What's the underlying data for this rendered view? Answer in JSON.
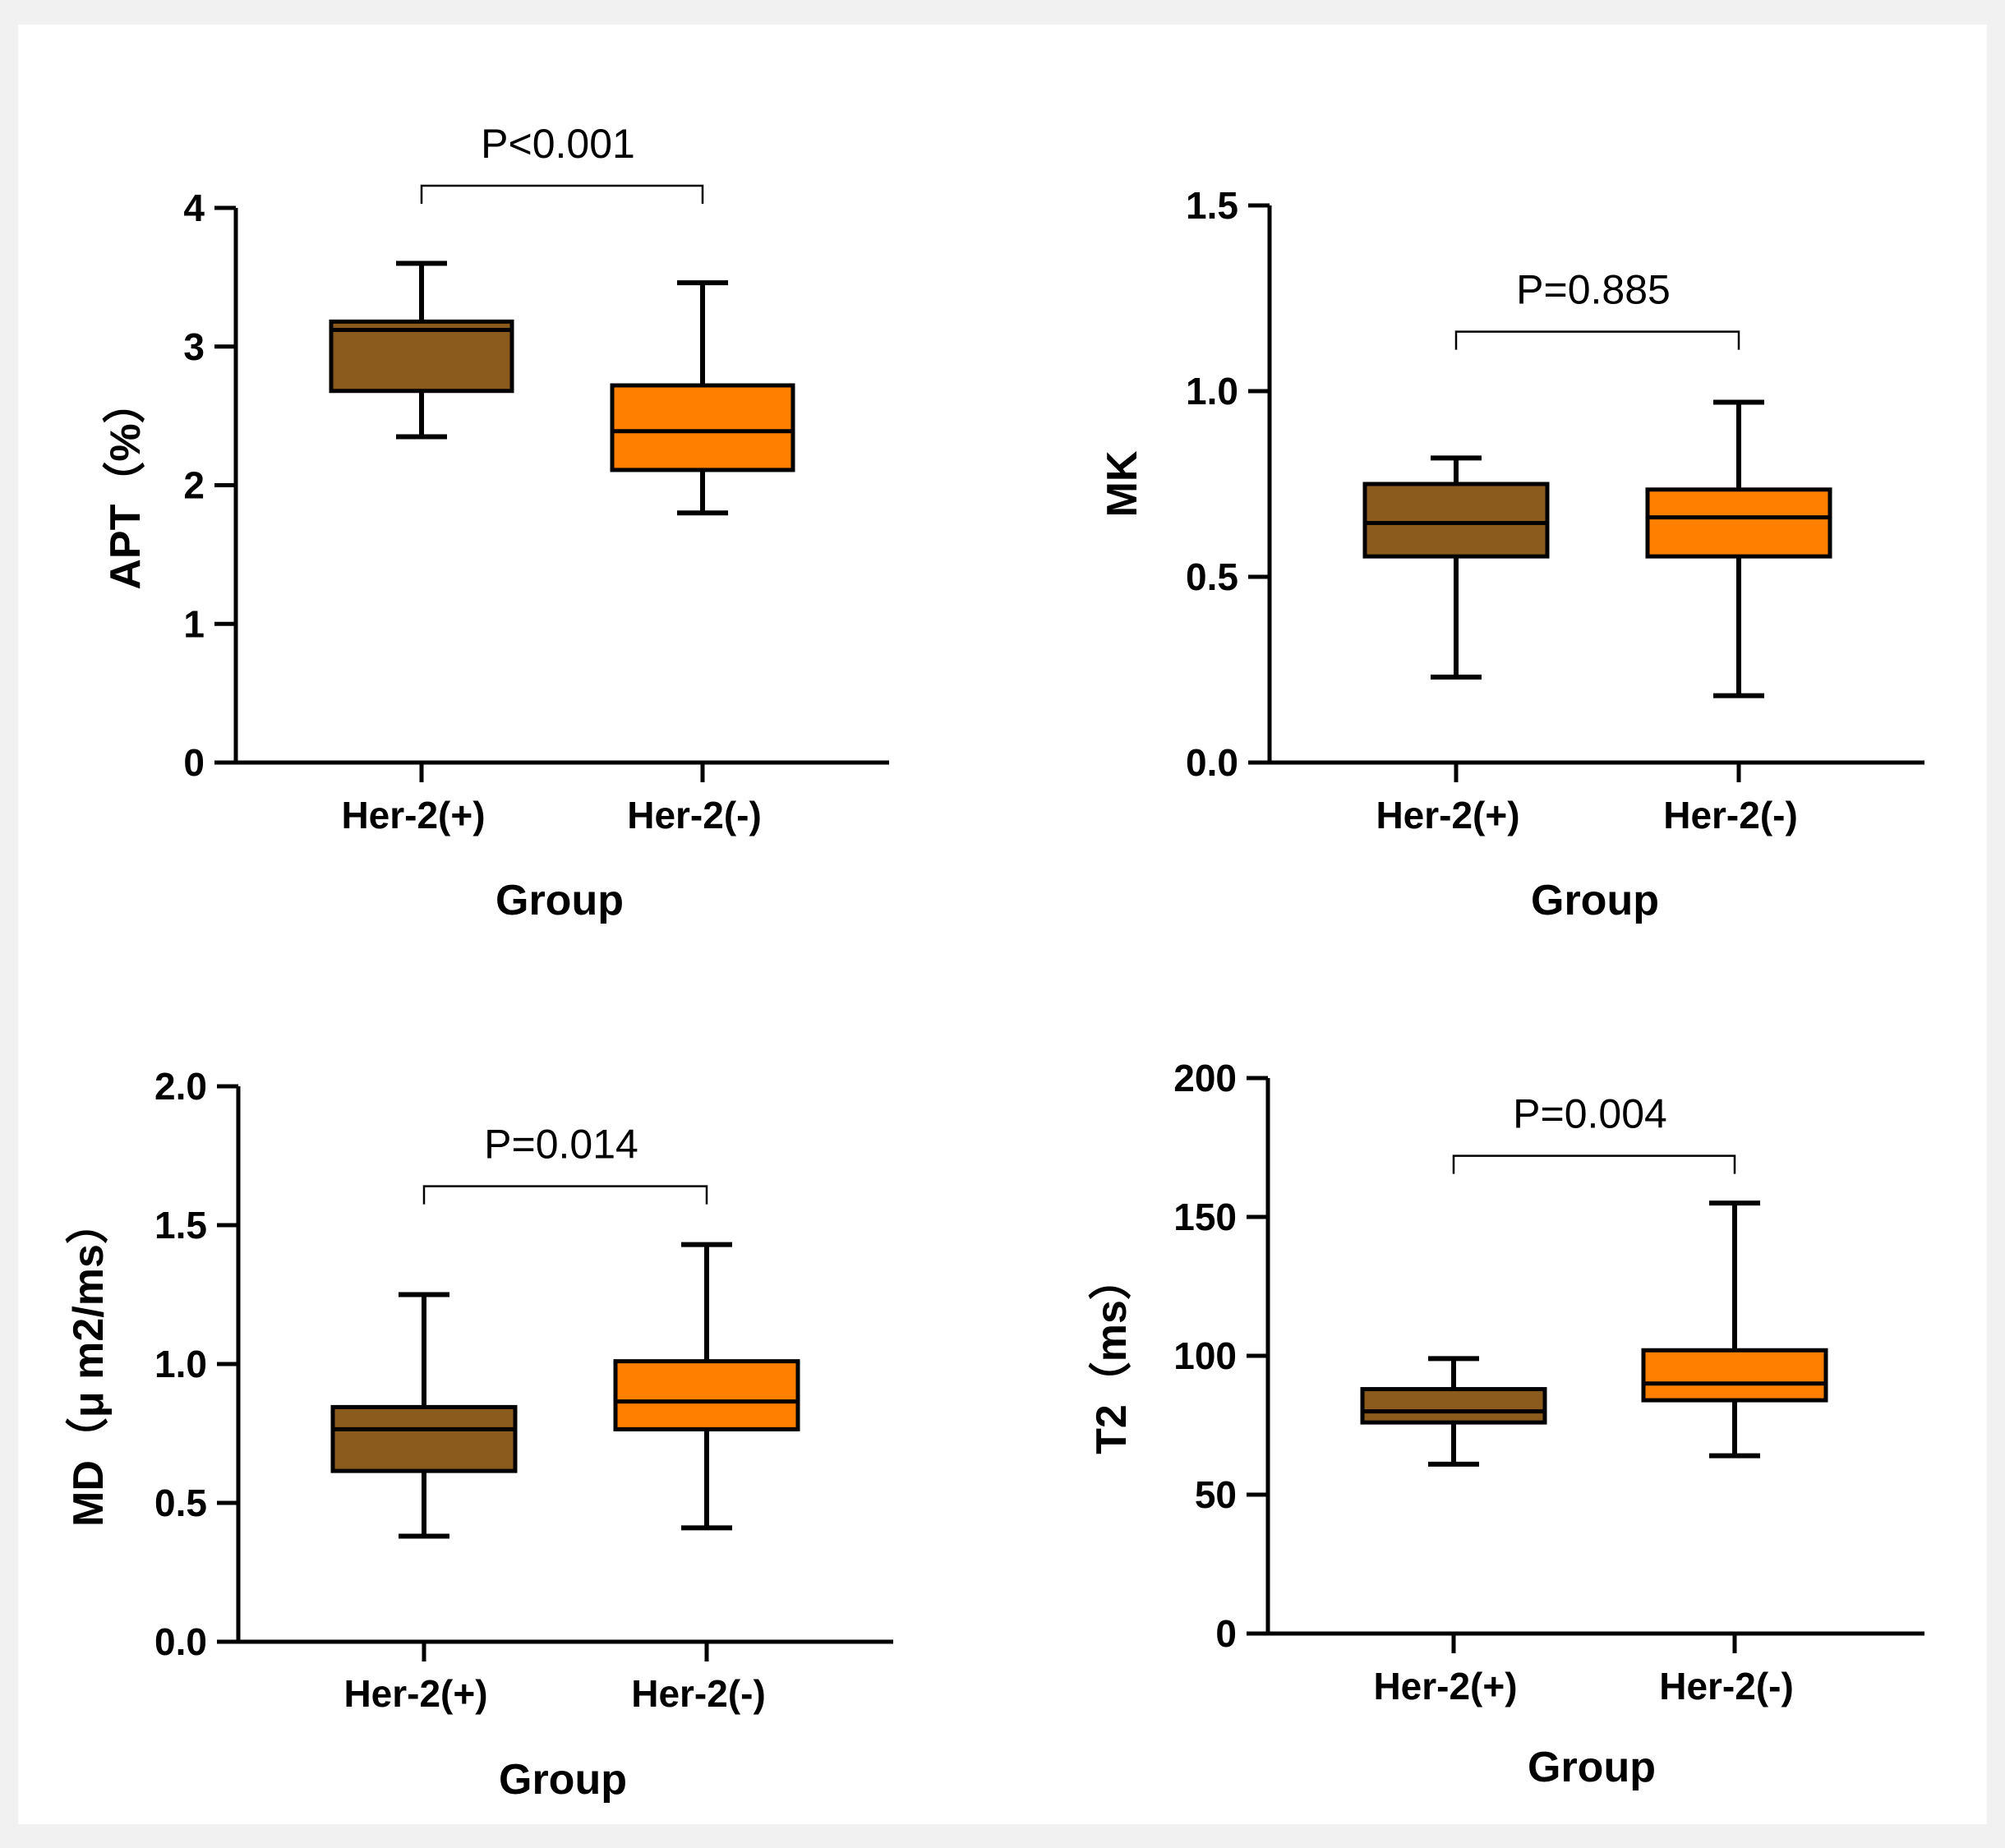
{
  "chart_data": [
    {
      "type": "box",
      "ylabel": "APT（%）",
      "xlabel": "Group",
      "ylim": [
        0,
        4
      ],
      "yticks": [
        "0",
        "1",
        "2",
        "3",
        "4"
      ],
      "ytick_values": [
        0,
        1,
        2,
        3,
        4
      ],
      "categories": [
        "Her-2(+)",
        "Her-2(-)"
      ],
      "boxes": [
        {
          "name": "Her-2(+)",
          "min": 2.35,
          "q1": 2.68,
          "median": 3.12,
          "q3": 3.18,
          "max": 3.6,
          "color": "#8b5a1d"
        },
        {
          "name": "Her-2(-)",
          "min": 1.8,
          "q1": 2.11,
          "median": 2.39,
          "q3": 2.72,
          "max": 3.46,
          "color": "#ff7f00"
        }
      ],
      "bracket_y": 4.16,
      "p_value": "P<0.001"
    },
    {
      "type": "box",
      "ylabel": "MK",
      "xlabel": "Group",
      "ylim": [
        0,
        1.5
      ],
      "yticks": [
        "0.0",
        "0.5",
        "1.0",
        "1.5"
      ],
      "ytick_values": [
        0,
        0.5,
        1.0,
        1.5
      ],
      "categories": [
        "Her-2(+)",
        "Her-2(-)"
      ],
      "boxes": [
        {
          "name": "Her-2(+)",
          "min": 0.23,
          "q1": 0.555,
          "median": 0.645,
          "q3": 0.75,
          "max": 0.82,
          "color": "#8b5a1d"
        },
        {
          "name": "Her-2(-)",
          "min": 0.18,
          "q1": 0.555,
          "median": 0.66,
          "q3": 0.735,
          "max": 0.97,
          "color": "#ff7f00"
        }
      ],
      "bracket_y": 1.16,
      "p_value": "P=0.885"
    },
    {
      "type": "box",
      "ylabel": "MD（μ m2/ms）",
      "xlabel": "Group",
      "ylim": [
        0,
        2.0
      ],
      "yticks": [
        "0.0",
        "0.5",
        "1.0",
        "1.5",
        "2.0"
      ],
      "ytick_values": [
        0,
        0.5,
        1.0,
        1.5,
        2.0
      ],
      "categories": [
        "Her-2(+)",
        "Her-2(-)"
      ],
      "boxes": [
        {
          "name": "Her-2(+)",
          "min": 0.38,
          "q1": 0.615,
          "median": 0.765,
          "q3": 0.845,
          "max": 1.25,
          "color": "#8b5a1d"
        },
        {
          "name": "Her-2(-)",
          "min": 0.41,
          "q1": 0.765,
          "median": 0.865,
          "q3": 1.01,
          "max": 1.43,
          "color": "#ff7f00"
        }
      ],
      "bracket_y": 1.64,
      "p_value": "P=0.014"
    },
    {
      "type": "box",
      "ylabel": "T2（ms）",
      "xlabel": "Group",
      "ylim": [
        0,
        200
      ],
      "yticks": [
        "0",
        "50",
        "100",
        "150",
        "200"
      ],
      "ytick_values": [
        0,
        50,
        100,
        150,
        200
      ],
      "categories": [
        "Her-2(+)",
        "Her-2(-)"
      ],
      "boxes": [
        {
          "name": "Her-2(+)",
          "min": 61,
          "q1": 76,
          "median": 80,
          "q3": 88,
          "max": 99,
          "color": "#8b5a1d"
        },
        {
          "name": "Her-2(-)",
          "min": 64,
          "q1": 84,
          "median": 90,
          "q3": 102,
          "max": 155,
          "color": "#ff7f00"
        }
      ],
      "bracket_y": 172,
      "p_value": "P=0.004"
    }
  ]
}
